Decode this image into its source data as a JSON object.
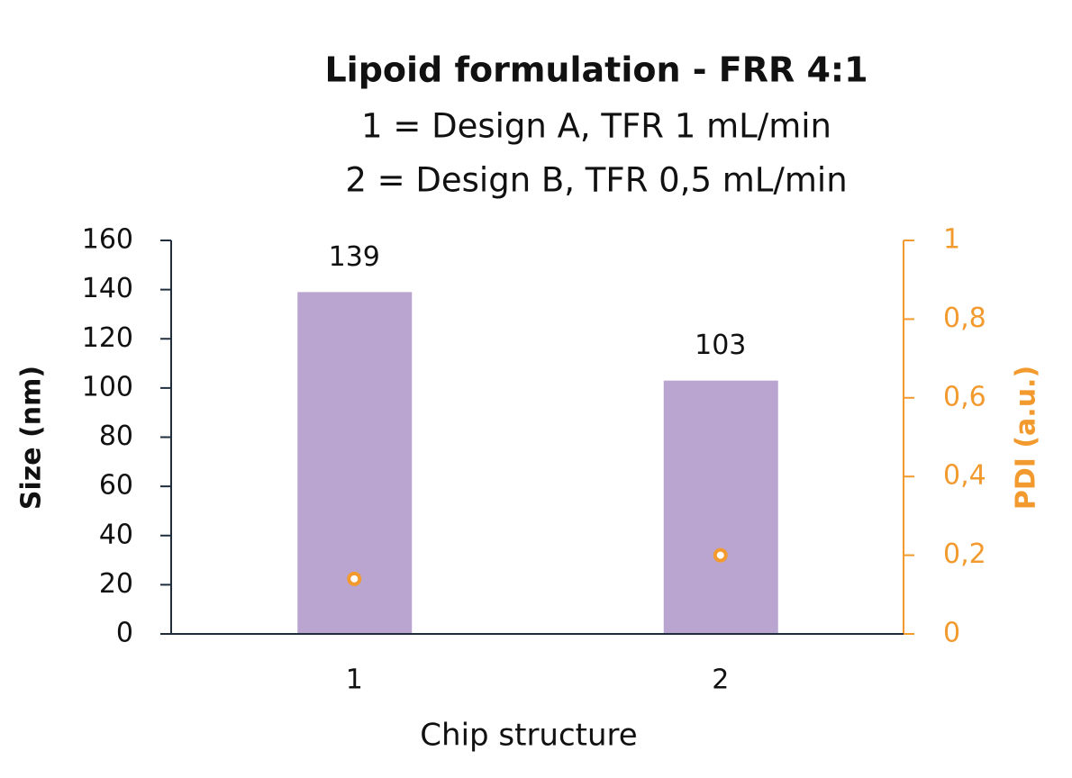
{
  "chart_data": {
    "type": "bar",
    "title": "Lipoid formulation - FRR 4:1",
    "subtitle": [
      "1 = Design A, TFR 1 mL/min",
      "2 = Design B, TFR 0,5 mL/min"
    ],
    "x_label": "Chip structure",
    "y_label": "Size (nm)",
    "y2_label": "PDI (a.u.)",
    "categories": [
      "1",
      "2"
    ],
    "series": [
      {
        "type": "bar",
        "color": "#b9a5cf",
        "values": [
          139,
          103
        ],
        "data_labels": true
      },
      {
        "type": "scatter",
        "axis": "y2",
        "color": "#f39a2e",
        "values": [
          0.14,
          0.2
        ]
      }
    ],
    "ylim": [
      0,
      160
    ],
    "yticks": [
      0,
      20,
      40,
      60,
      80,
      100,
      120,
      140,
      160
    ],
    "y2lim": [
      0,
      1
    ],
    "y2ticks": [
      0,
      {
        "value": 0.2,
        "label": "0,2"
      },
      {
        "value": 0.4,
        "label": "0,4"
      },
      {
        "value": 0.6,
        "label": "0,6"
      },
      {
        "value": 0.8,
        "label": "0,8"
      },
      1
    ],
    "grid": false
  }
}
